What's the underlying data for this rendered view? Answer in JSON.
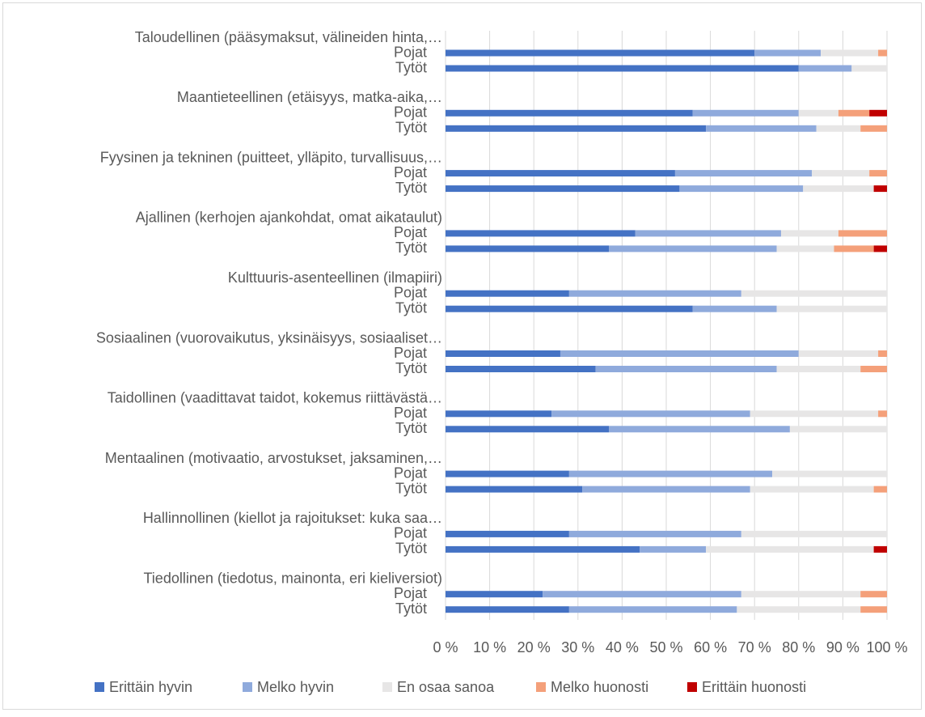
{
  "chart_data": {
    "type": "stacked_barh",
    "groups": [
      "Taloudellinen (pääsymaksut, välineiden hinta,…",
      "Maantieteellinen (etäisyys, matka-aika,…",
      "Fyysinen ja tekninen (puitteet, ylläpito, turvallisuus,…",
      "Ajallinen (kerhojen ajankohdat, omat aikataulut)",
      "Kulttuuris-asenteellinen (ilmapiiri)",
      "Sosiaalinen (vuorovaikutus, yksinäisyys, sosiaaliset…",
      "Taidollinen (vaadittavat taidot, kokemus riittävästä…",
      "Mentaalinen (motivaatio, arvostukset, jaksaminen,…",
      "Hallinnollinen (kiellot ja rajoitukset: kuka saa…",
      "Tiedollinen (tiedotus, mainonta, eri kieliversiot)"
    ],
    "categories": [
      "Pojat",
      "Tytöt",
      "Pojat",
      "Tytöt",
      "Pojat",
      "Tytöt",
      "Pojat",
      "Tytöt",
      "Pojat",
      "Tytöt",
      "Pojat",
      "Tytöt",
      "Pojat",
      "Tytöt",
      "Pojat",
      "Tytöt",
      "Pojat",
      "Tytöt",
      "Pojat",
      "Tytöt"
    ],
    "series": [
      {
        "name": "Erittäin hyvin",
        "color": "#4472c4",
        "values": [
          70,
          80,
          56,
          59,
          52,
          53,
          43,
          37,
          28,
          56,
          26,
          34,
          24,
          37,
          28,
          31,
          28,
          44,
          22,
          28
        ]
      },
      {
        "name": "Melko hyvin",
        "color": "#8faadc",
        "values": [
          15,
          12,
          24,
          25,
          31,
          28,
          33,
          38,
          39,
          19,
          54,
          41,
          45,
          41,
          46,
          38,
          39,
          15,
          45,
          38
        ]
      },
      {
        "name": "En osaa sanoa",
        "color": "#e7e6e6",
        "values": [
          13,
          8,
          9,
          10,
          13,
          16,
          13,
          13,
          33,
          25,
          18,
          19,
          29,
          22,
          26,
          28,
          33,
          38,
          27,
          28
        ]
      },
      {
        "name": "Melko huonosti",
        "color": "#f4a07a",
        "values": [
          2,
          0,
          7,
          6,
          4,
          0,
          11,
          9,
          0,
          0,
          2,
          6,
          2,
          0,
          0,
          3,
          0,
          0,
          6,
          6
        ]
      },
      {
        "name": "Erittäin huonosti",
        "color": "#c00000",
        "values": [
          0,
          0,
          4,
          0,
          0,
          3,
          0,
          3,
          0,
          0,
          0,
          0,
          0,
          0,
          0,
          0,
          0,
          3,
          0,
          0
        ]
      }
    ],
    "xlim": [
      0,
      100
    ],
    "xticks": [
      {
        "value": 0,
        "label": "0 %"
      },
      {
        "value": 10,
        "label": "10 %"
      },
      {
        "value": 20,
        "label": "20 %"
      },
      {
        "value": 30,
        "label": "30 %"
      },
      {
        "value": 40,
        "label": "40 %"
      },
      {
        "value": 50,
        "label": "50 %"
      },
      {
        "value": 60,
        "label": "60 %"
      },
      {
        "value": 70,
        "label": "70 %"
      },
      {
        "value": 80,
        "label": "80 %"
      },
      {
        "value": 90,
        "label": "90 %"
      },
      {
        "value": 100,
        "label": "100 %"
      }
    ],
    "grid": true,
    "legend": "bottom"
  }
}
